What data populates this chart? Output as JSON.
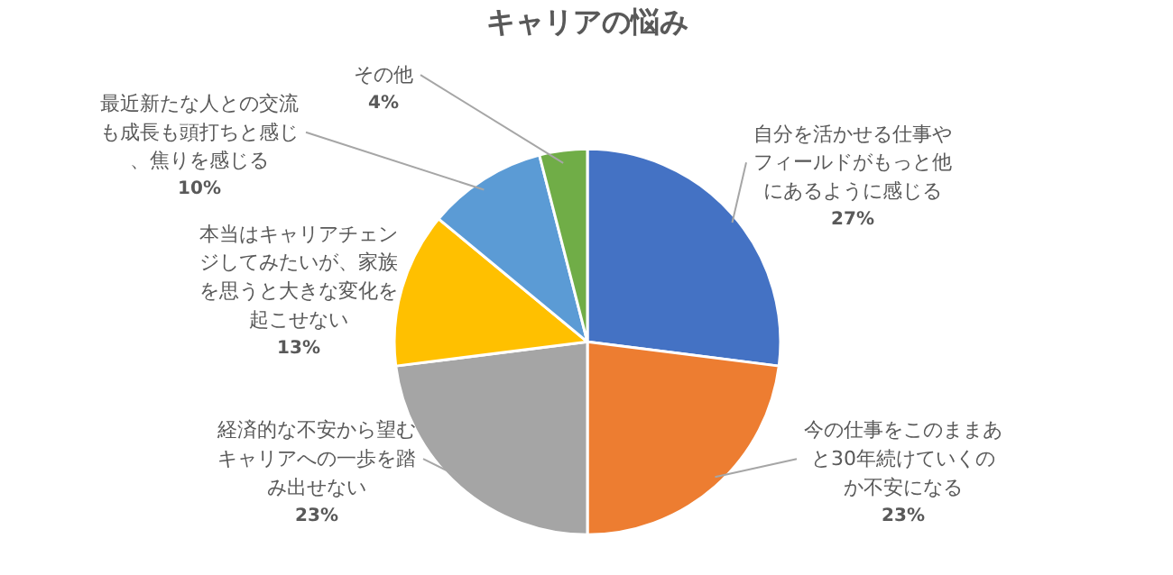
{
  "chart_data": {
    "type": "pie",
    "title": "キャリアの悩み",
    "categories": [
      "自分を活かせる仕事やフィールドがもっと他にあるように感じる",
      "今の仕事をこのままあと30年続けていくのか不安になる",
      "経済的な不安から望むキャリアへの一歩を踏み出せない",
      "本当はキャリアチェンジしてみたいが、家族を思うと大きな変化を起こせない",
      "最近新たな人との交流も成長も頭打ちと感じ、焦りを感じる",
      "その他"
    ],
    "values": [
      27,
      23,
      23,
      13,
      10,
      4
    ],
    "colors": [
      "#4472c4",
      "#ed7d31",
      "#a5a5a5",
      "#ffc000",
      "#5b9bd5",
      "#70ad47"
    ],
    "value_labels": [
      "27%",
      "23%",
      "23%",
      "13%",
      "10%",
      "4%"
    ]
  }
}
